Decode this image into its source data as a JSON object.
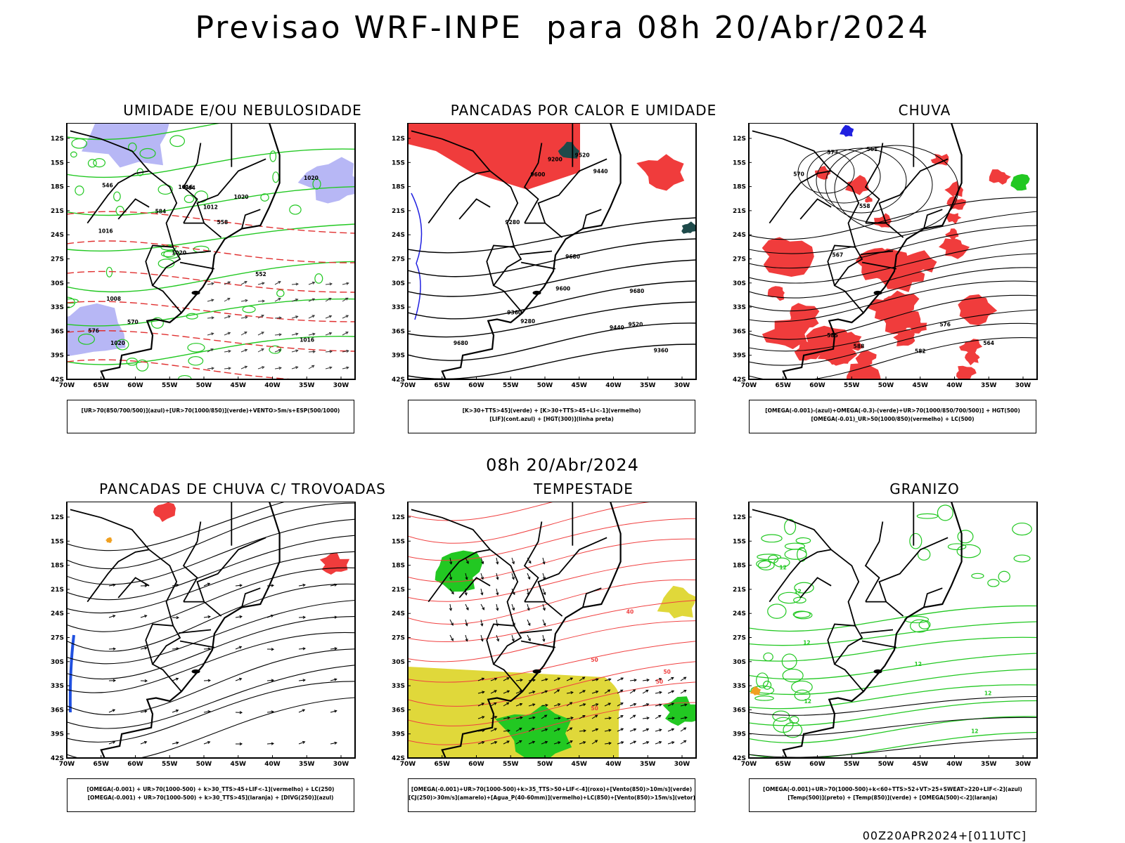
{
  "title": "Previsao WRF-INPE  para 08h 20/Abr/2024",
  "subtitle": "08h 20/Abr/2024",
  "footer": "00Z20APR2024+[011UTC]",
  "axes": {
    "lat_labels": [
      "12S",
      "15S",
      "18S",
      "21S",
      "24S",
      "27S",
      "30S",
      "33S",
      "36S",
      "39S",
      "42S"
    ],
    "lon_labels": [
      "70W",
      "65W",
      "60W",
      "55W",
      "50W",
      "45W",
      "40W",
      "35W",
      "30W"
    ]
  },
  "panels": [
    {
      "title": "UMIDADE E/OU NEBULOSIDADE",
      "legend": [
        "[UR>70(850/700/500)](azul)+[UR>70(1000/850)](verde)+VENTO>5m/s+ESP(500/1000)"
      ],
      "fill_colors": [
        "#b7b7f5",
        "#22c822"
      ],
      "contour_labels": [
        "1016",
        "1016",
        "1020",
        "1020",
        "1020",
        "1020",
        "1016",
        "1012",
        "1008",
        "584",
        "576",
        "570",
        "564",
        "558",
        "552",
        "546"
      ]
    },
    {
      "title": "PANCADAS POR CALOR E UMIDADE",
      "legend": [
        "[K>30+TTS>45](verde) + [K>30+TTS>45+LI<-1](vermelho)",
        "[LIF](cont.azul) + [HGT(300)](linha preta)"
      ],
      "fill_colors": [
        "#f03c3c",
        "#1e4a4a",
        "#2020e0"
      ],
      "contour_labels": [
        "9680",
        "9680",
        "9680",
        "9600",
        "9600",
        "9520",
        "9520",
        "9440",
        "9440",
        "9360",
        "9360",
        "9280",
        "9280",
        "9200"
      ]
    },
    {
      "title": "CHUVA",
      "legend": [
        "[OMEGA(-0.001)-(azul)+OMEGA(-0.3)-(verde)+UR>70(1000/850/700/500)] + HGT(500)",
        "[OMEGA(-0.01)_UR>50(1000/850)(vermelho) + LC(500)"
      ],
      "fill_colors": [
        "#f03c3c",
        "#2020e0",
        "#22c822"
      ],
      "contour_labels": [
        "588",
        "582",
        "585",
        "576",
        "573",
        "570",
        "567",
        "564",
        "561",
        "558"
      ]
    },
    {
      "title": "PANCADAS DE CHUVA C/ TROVOADAS",
      "legend": [
        "[OMEGA(-0.001) + UR>70(1000-500) + k>30_TTS>45+LIF<-1](vermelho) + LC(250)",
        "[OMEGA(-0.001) + UR>70(1000-500) + k>30_TTS>45](laranja) + [DIVG(250)](azul)"
      ],
      "fill_colors": [
        "#f03c3c",
        "#f0a020",
        "#2050e0"
      ],
      "contour_labels": []
    },
    {
      "title": "TEMPESTADE",
      "legend": [
        "[OMEGA(-0.001)+UR>70(1000-500)+k>35_TTS>50+LIF<-4](roxo)+[Vento(850)>10m/s](verde)",
        "[CJ(250)>30m/s](amarelo)+[Agua_P(40-60mm)](vermelho)+LC(850)+[Vento(850)>15m/s](vetor)"
      ],
      "fill_colors": [
        "#e0d83a",
        "#22c822",
        "#f04040"
      ],
      "contour_labels": [
        "50",
        "50",
        "40",
        "50",
        "50"
      ]
    },
    {
      "title": "GRANIZO",
      "legend": [
        "[OMEGA(-0.001)+UR>70(1000-500)+k<60+TTS>52+VT>25+SWEAT>220+LIF<-2](azul)",
        "[Temp(500)](preto) + [Temp(850)](verde) + [OMEGA(500)<-2](laranja)"
      ],
      "fill_colors": [
        "#22c822",
        "#f0a020"
      ],
      "contour_labels": [
        "12",
        "12",
        "12",
        "12",
        "12",
        "12",
        "12"
      ]
    }
  ]
}
